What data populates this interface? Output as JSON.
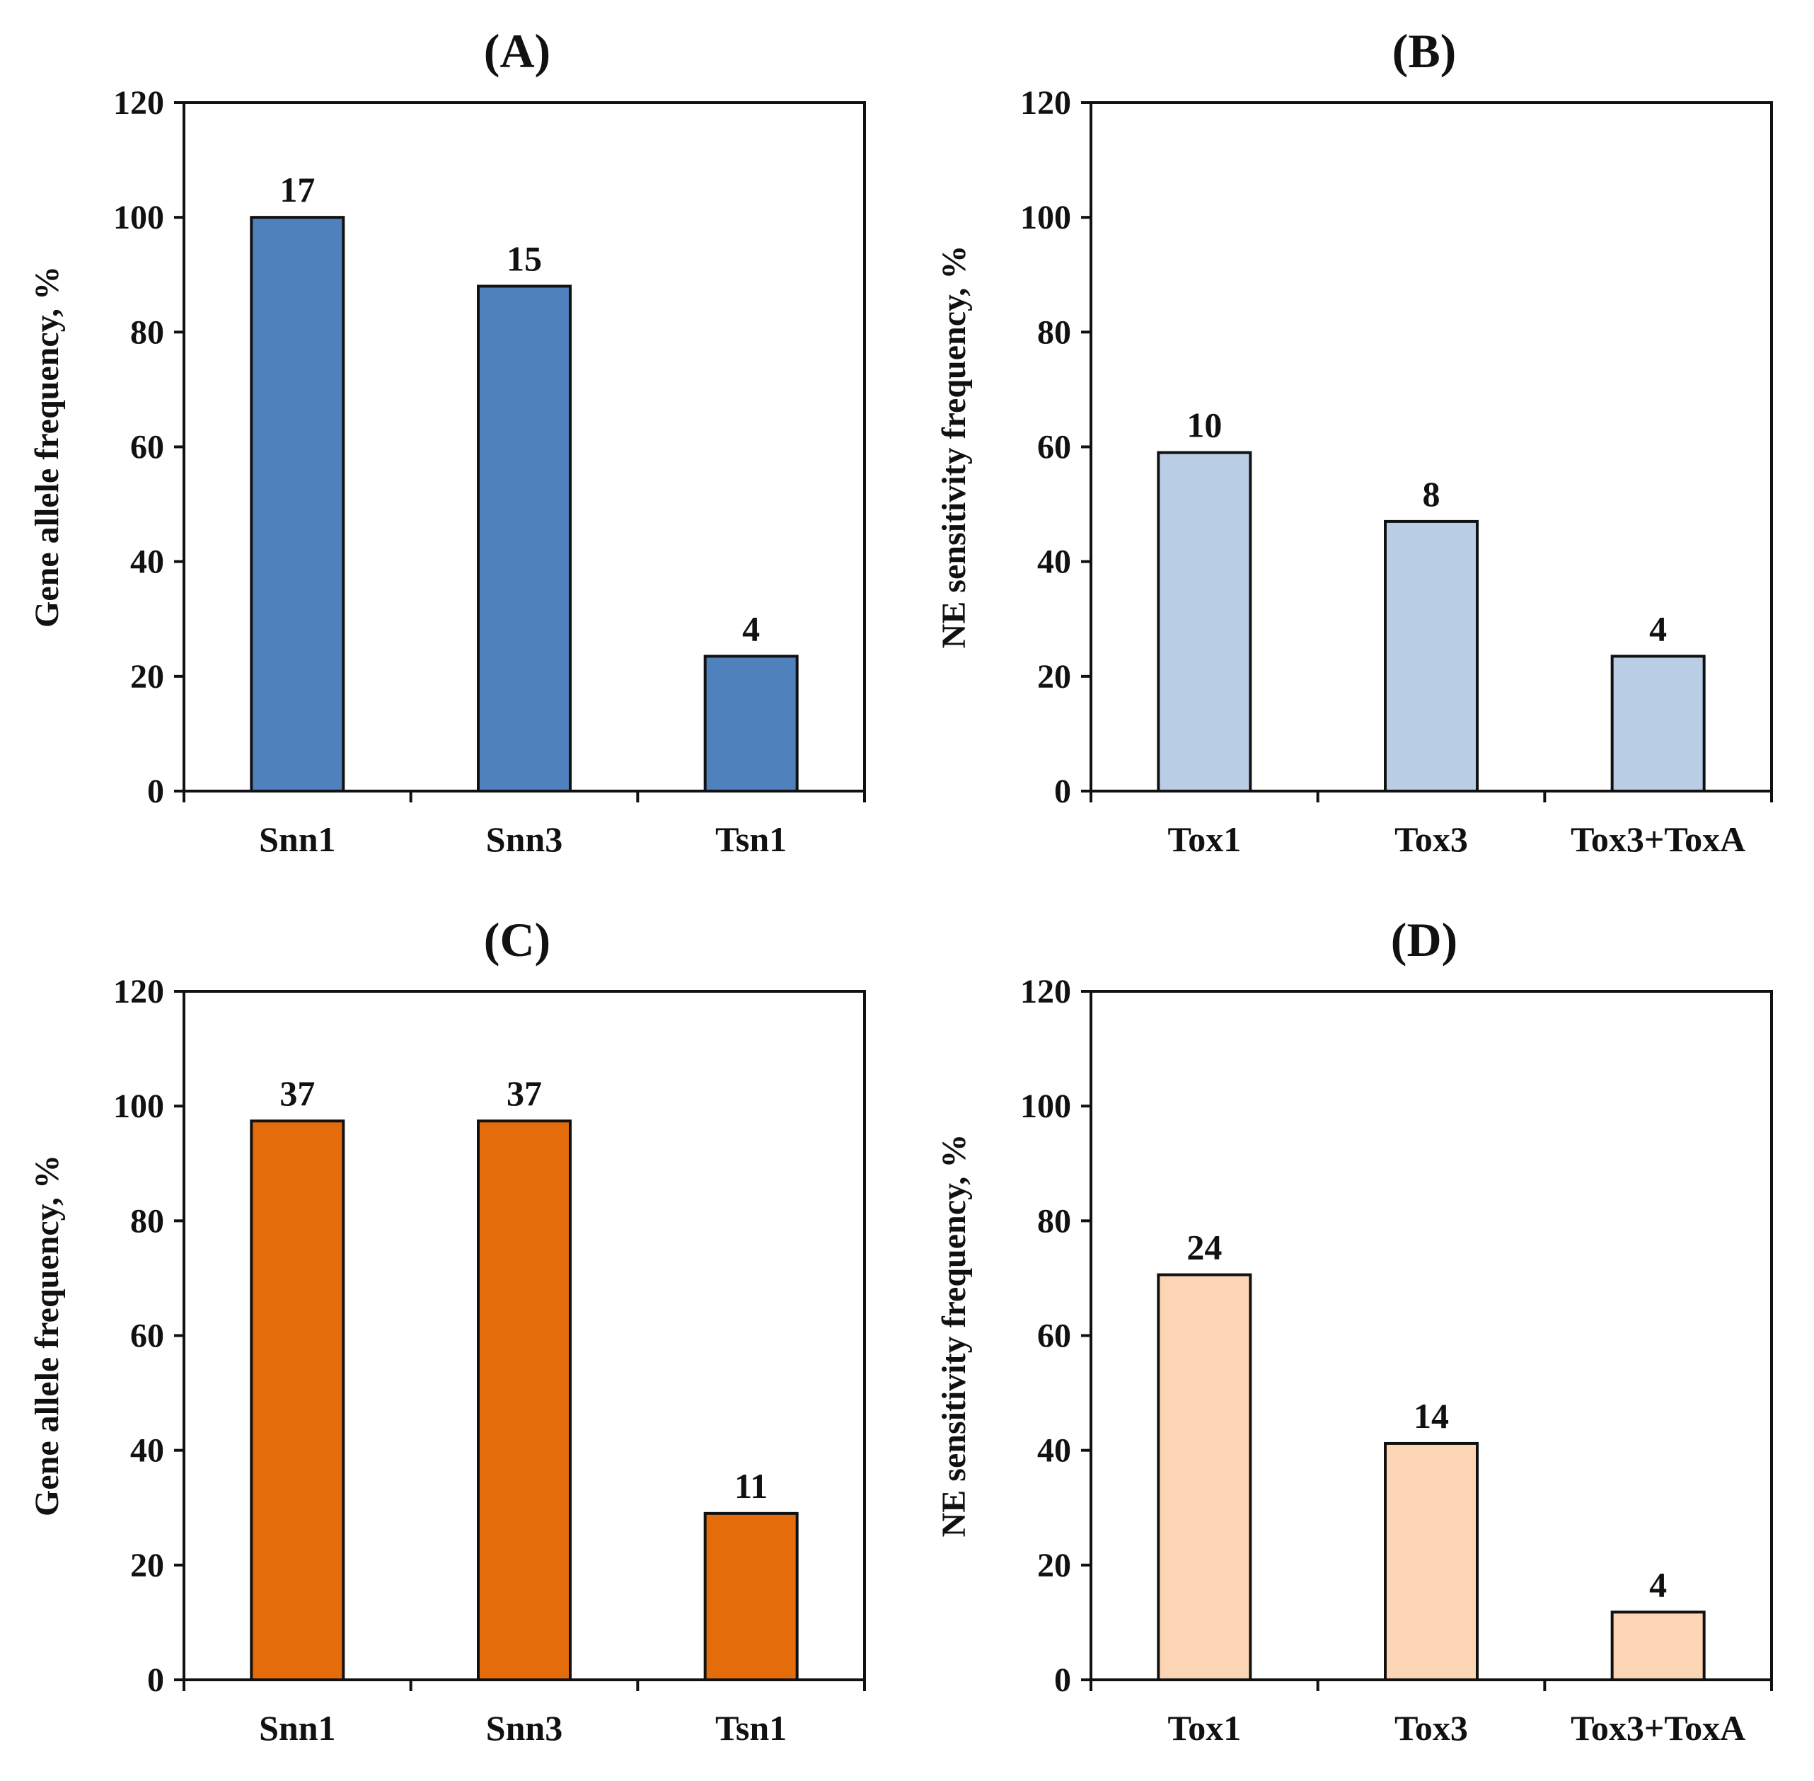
{
  "chart_data": [
    {
      "type": "bar",
      "panel": "(A)",
      "title": "(A)",
      "ylabel": "Gene allele frequency, %",
      "xlabel": "",
      "ylim": [
        0,
        120
      ],
      "yticks": [
        "0",
        "20",
        "40",
        "60",
        "80",
        "100",
        "120"
      ],
      "categories": [
        "Snn1",
        "Snn3",
        "Tsn1"
      ],
      "values": [
        100,
        88,
        23.5
      ],
      "data_labels": [
        "17",
        "15",
        "4"
      ],
      "color": "#4f81bd"
    },
    {
      "type": "bar",
      "panel": "(B)",
      "title": "(B)",
      "ylabel": "NE sensitivity  frequency, %",
      "xlabel": "",
      "ylim": [
        0,
        120
      ],
      "yticks": [
        "0",
        "20",
        "40",
        "60",
        "80",
        "100",
        "120"
      ],
      "categories": [
        "Tox1",
        "Tox3",
        "Tox3+ToxA"
      ],
      "values": [
        59,
        47,
        23.5
      ],
      "data_labels": [
        "10",
        "8",
        "4"
      ],
      "color": "#b9cde5"
    },
    {
      "type": "bar",
      "panel": "(C)",
      "title": "(C)",
      "ylabel": "Gene allele frequency, %",
      "xlabel": "",
      "ylim": [
        0,
        120
      ],
      "yticks": [
        "0",
        "20",
        "40",
        "60",
        "80",
        "100",
        "120"
      ],
      "categories": [
        "Snn1",
        "Snn3",
        "Tsn1"
      ],
      "values": [
        97.4,
        97.4,
        29
      ],
      "data_labels": [
        "37",
        "37",
        "11"
      ],
      "color": "#e46c0a"
    },
    {
      "type": "bar",
      "panel": "(D)",
      "title": "(D)",
      "ylabel": "NE sensitivity  frequency, %",
      "xlabel": "",
      "ylim": [
        0,
        120
      ],
      "yticks": [
        "0",
        "20",
        "40",
        "60",
        "80",
        "100",
        "120"
      ],
      "categories": [
        "Tox1",
        "Tox3",
        "Tox3+ToxA"
      ],
      "values": [
        70.6,
        41.2,
        11.8
      ],
      "data_labels": [
        "24",
        "14",
        "4"
      ],
      "color": "#fcd5b5"
    }
  ]
}
